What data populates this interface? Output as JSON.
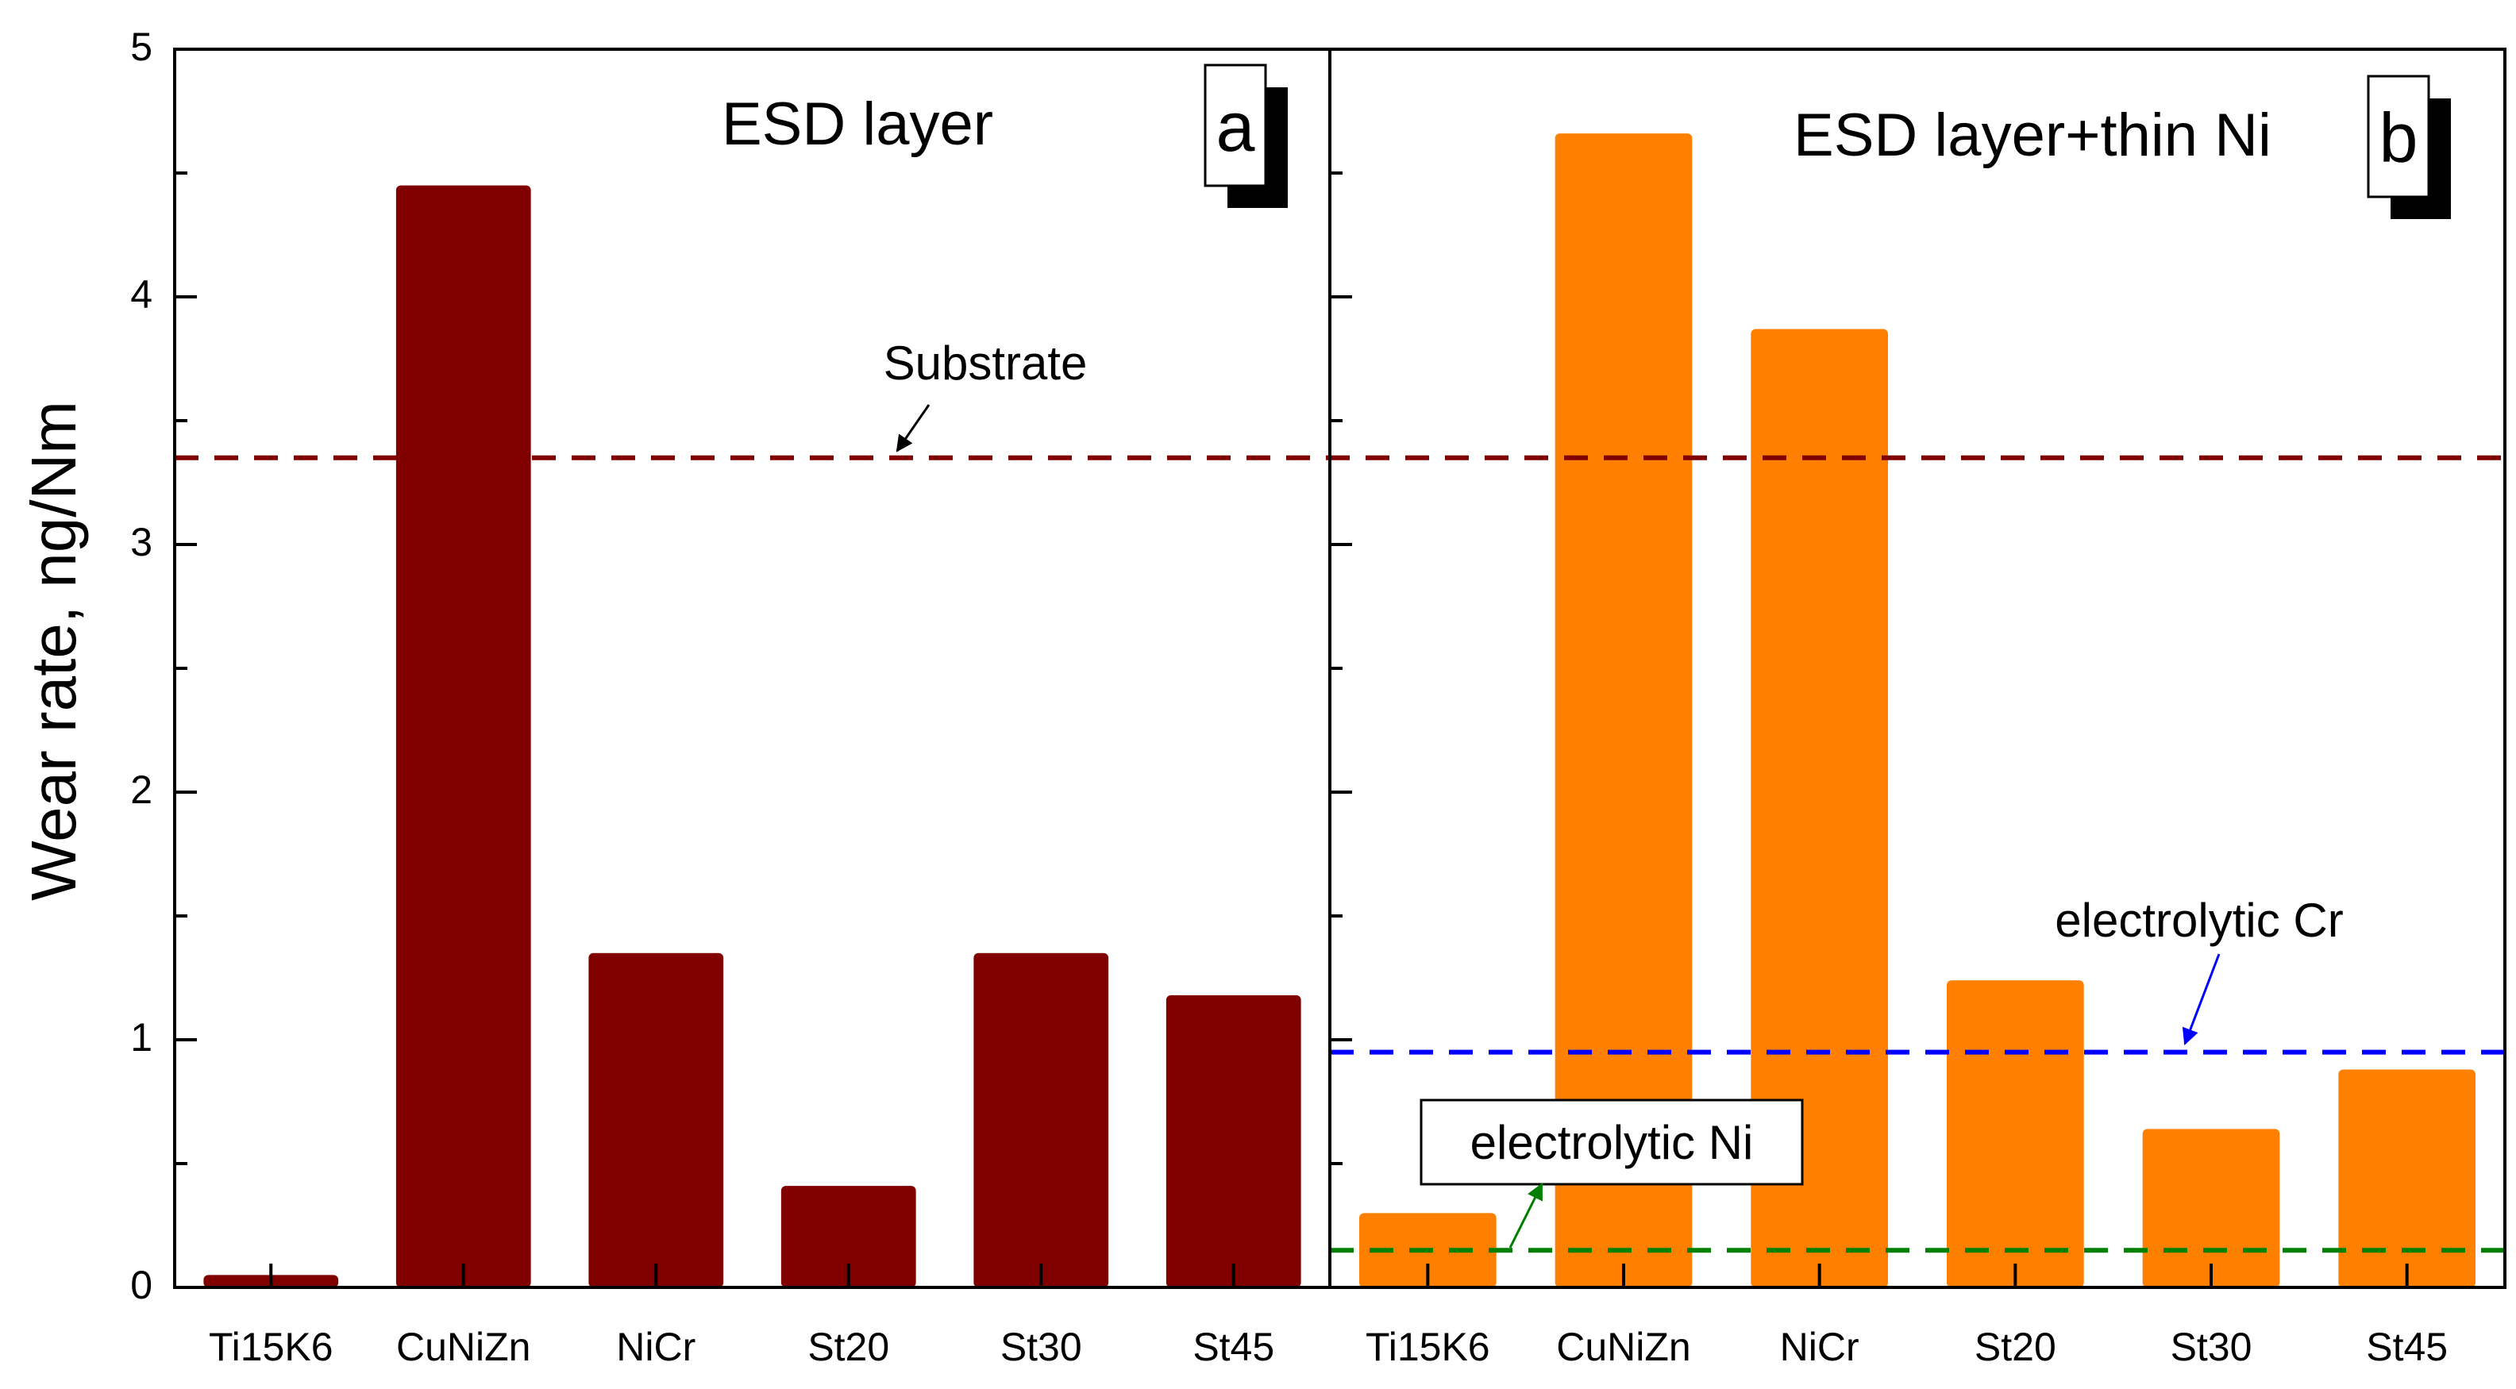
{
  "chart_data": {
    "type": "bar",
    "ylabel": "Wear rate, ng/Nm",
    "ylim": [
      0,
      5
    ],
    "yticks": [
      "0",
      "1",
      "2",
      "3",
      "4",
      "5"
    ],
    "panels": [
      {
        "id": "a",
        "badge": "a",
        "title": "ESD layer",
        "color": "#800000",
        "categories": [
          "Ti15K6",
          "CuNiZn",
          "NiCr",
          "St20",
          "St30",
          "St45"
        ],
        "values": [
          0.05,
          4.45,
          1.35,
          0.41,
          1.35,
          1.18
        ]
      },
      {
        "id": "b",
        "badge": "b",
        "title": "ESD layer+thin Ni",
        "color": "#ff8000",
        "categories": [
          "Ti15K6",
          "CuNiZn",
          "NiCr",
          "St20",
          "St30",
          "St45"
        ],
        "values": [
          0.3,
          4.66,
          3.87,
          1.24,
          0.64,
          0.88
        ]
      }
    ],
    "reference_lines": [
      {
        "name": "Substrate",
        "label": "Substrate",
        "value": 3.35,
        "color": "#800000",
        "span": "both"
      },
      {
        "name": "electrolytic Cr",
        "label": "electrolytic Cr",
        "value": 0.95,
        "color": "#0000ff",
        "span": "b"
      },
      {
        "name": "electrolytic Ni",
        "label": "electrolytic Ni",
        "value": 0.15,
        "color": "#008000",
        "span": "b"
      }
    ]
  }
}
